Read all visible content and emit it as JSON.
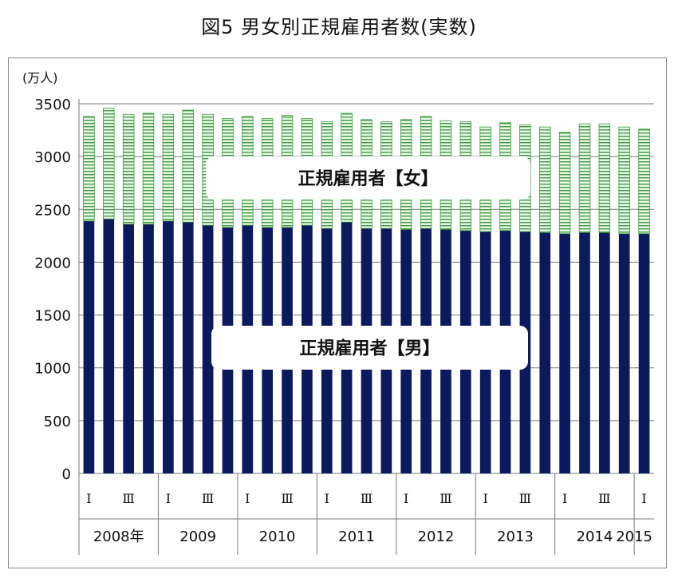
{
  "page": {
    "title": "図5 男女別正規雇用者数(実数)"
  },
  "chart_data": {
    "type": "bar",
    "stacked": true,
    "title": "図5 男女別正規雇用者数(実数)",
    "ylabel": "(万人)",
    "ylim": [
      0,
      3500
    ],
    "yticks": [
      0,
      500,
      1000,
      1500,
      2000,
      2500,
      3000,
      3500
    ],
    "grid": true,
    "quarters": [
      "Ⅰ",
      "",
      "Ⅲ",
      "",
      "Ⅰ",
      "",
      "Ⅲ",
      "",
      "Ⅰ",
      "",
      "Ⅲ",
      "",
      "Ⅰ",
      "",
      "Ⅲ",
      "",
      "Ⅰ",
      "",
      "Ⅲ",
      "",
      "Ⅰ",
      "",
      "Ⅲ",
      "",
      "Ⅰ",
      "",
      "Ⅲ",
      "",
      "Ⅰ"
    ],
    "year_labels": [
      "2008年",
      "2009",
      "2010",
      "2011",
      "2012",
      "2013",
      "2014",
      "2015"
    ],
    "series": [
      {
        "name": "正規雇用者【男】",
        "color": "#0b1a5c",
        "values": [
          2390,
          2410,
          2360,
          2360,
          2390,
          2380,
          2350,
          2330,
          2350,
          2330,
          2330,
          2350,
          2320,
          2380,
          2320,
          2320,
          2310,
          2320,
          2310,
          2300,
          2290,
          2300,
          2290,
          2280,
          2270,
          2280,
          2280,
          2270,
          2270
        ]
      },
      {
        "name": "正規雇用者【女】",
        "color": "#c7ecc7",
        "values": [
          990,
          1050,
          1040,
          1050,
          1010,
          1060,
          1050,
          1030,
          1030,
          1030,
          1060,
          1010,
          1010,
          1030,
          1030,
          1010,
          1040,
          1060,
          1030,
          1030,
          990,
          1020,
          1010,
          1000,
          960,
          1030,
          1030,
          1010,
          990
        ]
      }
    ]
  }
}
